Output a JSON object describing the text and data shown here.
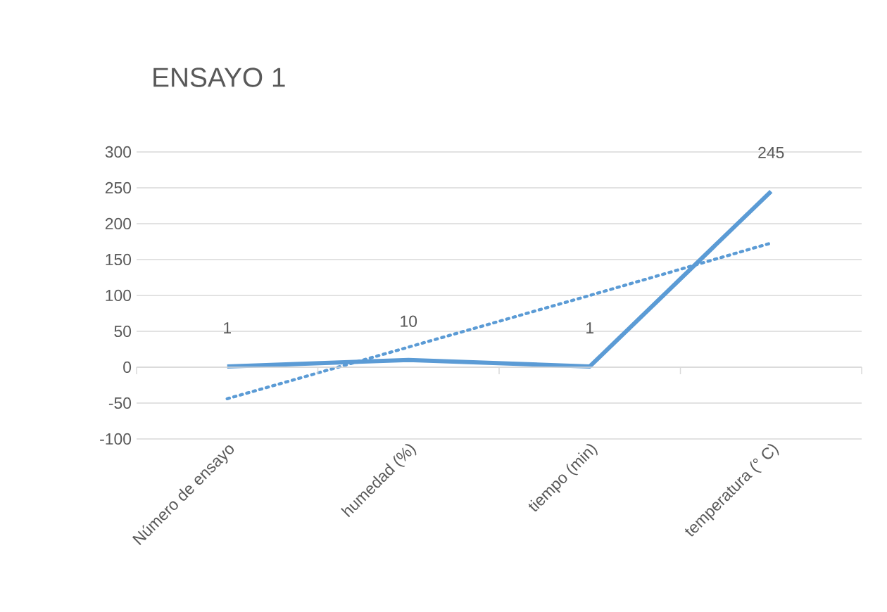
{
  "chart_data": {
    "type": "line",
    "title": "ENSAYO 1",
    "categories": [
      "Número de ensayo",
      "humedad (%)",
      "tiempo (min)",
      "temperatura (° C)"
    ],
    "series": [
      {
        "color": "#5b9bd5",
        "values": [
          1,
          10,
          1,
          245
        ],
        "value_labels": [
          "1",
          "10",
          "1",
          "245"
        ],
        "line_style": "solid"
      },
      {
        "type": "line",
        "color": "#5b9bd5",
        "values": [
          -44,
          28,
          100,
          173
        ],
        "line_style": "dotted"
      }
    ],
    "ylim": [
      -100,
      300
    ],
    "yticks": [
      -100,
      -50,
      0,
      50,
      100,
      150,
      200,
      250,
      300
    ],
    "grid": "y"
  }
}
